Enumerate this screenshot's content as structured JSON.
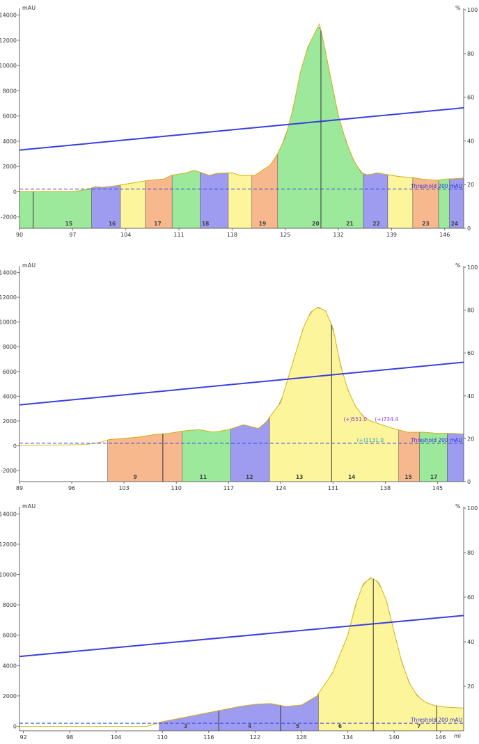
{
  "chart_data": [
    {
      "type": "area",
      "title": "",
      "y_unit_left": "mAU",
      "y_unit_right": "%",
      "xlim": [
        90,
        148.5
      ],
      "ylim": [
        -2900,
        14200
      ],
      "x_ticks": [
        90,
        97,
        104,
        111,
        118,
        125,
        132,
        139,
        146
      ],
      "y_ticks": [
        -2000,
        0,
        2000,
        4000,
        6000,
        8000,
        10000,
        12000,
        14000
      ],
      "y2_ticks": [
        0,
        20,
        40,
        60,
        80,
        100
      ],
      "x_unit": "",
      "threshold": {
        "value": 200,
        "label": "Threshold 200 mAU"
      },
      "gradient": {
        "x": [
          90,
          148.5
        ],
        "y": [
          3300,
          6650
        ]
      },
      "absorbance": {
        "x": [
          90,
          97,
          99,
          100,
          101,
          103,
          104,
          106,
          107,
          109,
          110,
          112,
          113,
          114,
          115,
          116,
          118,
          119,
          121,
          122,
          123,
          124,
          125,
          126,
          127,
          128,
          129,
          129.5,
          130,
          131,
          132,
          133,
          134,
          135,
          136,
          137,
          139,
          140,
          142,
          143,
          145,
          146,
          148,
          148.5
        ],
        "y": [
          0,
          0,
          200,
          400,
          350,
          500,
          600,
          800,
          900,
          1000,
          1300,
          1500,
          1700,
          1500,
          1300,
          1450,
          1500,
          1300,
          1300,
          1700,
          2100,
          3000,
          4300,
          6500,
          9500,
          11500,
          12700,
          13300,
          12000,
          9000,
          6000,
          4000,
          2500,
          1500,
          1300,
          1500,
          1300,
          1200,
          1100,
          1000,
          900,
          1000,
          1050,
          1100
        ]
      },
      "fractions": [
        {
          "x0": 90,
          "x1": 99.5,
          "color": "#9ce99c",
          "label": "15"
        },
        {
          "x0": 99.5,
          "x1": 103.3,
          "color": "#9e9cf0",
          "label": "16"
        },
        {
          "x0": 103.3,
          "x1": 106.6,
          "color": "#fdf59c",
          "label": ""
        },
        {
          "x0": 106.6,
          "x1": 110.1,
          "color": "#f8b88e",
          "label": "17"
        },
        {
          "x0": 110.1,
          "x1": 113.8,
          "color": "#9ce99c",
          "label": ""
        },
        {
          "x0": 113.8,
          "x1": 117.5,
          "color": "#9e9cf0",
          "label": "18"
        },
        {
          "x0": 117.5,
          "x1": 120.6,
          "color": "#fdf59c",
          "label": ""
        },
        {
          "x0": 120.6,
          "x1": 124,
          "color": "#f8b88e",
          "label": "19"
        },
        {
          "x0": 124,
          "x1": 142.6,
          "color": "#9ce99c",
          "label": "20"
        },
        {
          "x0": 124,
          "x1": 142.6,
          "color": "none",
          "label": ""
        }
      ],
      "fraction_labels": [
        {
          "x": 96.5,
          "text": "15"
        },
        {
          "x": 102.2,
          "text": "16"
        },
        {
          "x": 108.2,
          "text": "17"
        },
        {
          "x": 114.5,
          "text": "18"
        },
        {
          "x": 122,
          "text": "19"
        },
        {
          "x": 129,
          "text": "20"
        },
        {
          "x": 133.5,
          "text": "21"
        },
        {
          "x": 137,
          "text": "22"
        },
        {
          "x": 143.5,
          "text": "23"
        },
        {
          "x": 147.3,
          "text": "24"
        }
      ],
      "fractions_right": [
        {
          "x0": 124,
          "x1": 135.3,
          "color": "#9ce99c"
        },
        {
          "x0": 135.3,
          "x1": 138.5,
          "color": "#9e9cf0"
        },
        {
          "x0": 138.5,
          "x1": 141.8,
          "color": "#fdf59c"
        },
        {
          "x0": 141.8,
          "x1": 145.2,
          "color": "#f8b88e"
        },
        {
          "x0": 145.2,
          "x1": 146.6,
          "color": "#9ce99c"
        },
        {
          "x0": 146.6,
          "x1": 148.5,
          "color": "#9e9cf0"
        }
      ],
      "markers": [
        91.8,
        129.7
      ],
      "annotations": []
    },
    {
      "type": "area",
      "title": "",
      "y_unit_left": "mAU",
      "y_unit_right": "%",
      "xlim": [
        89,
        148.5
      ],
      "ylim": [
        -2900,
        14200
      ],
      "x_ticks": [
        89,
        96,
        103,
        110,
        117,
        124,
        131,
        138,
        145
      ],
      "y_ticks": [
        -2000,
        0,
        2000,
        4000,
        6000,
        8000,
        10000,
        12000,
        14000
      ],
      "y2_ticks": [
        0,
        20,
        40,
        60,
        80,
        100
      ],
      "x_unit": "",
      "threshold": {
        "value": 200,
        "label": "Threshold 200 mAU"
      },
      "gradient": {
        "x": [
          89,
          148.5
        ],
        "y": [
          3300,
          6750
        ]
      },
      "absorbance": {
        "x": [
          89,
          98,
          100,
          101,
          103,
          105,
          107,
          109,
          111,
          113,
          115,
          117,
          119,
          121,
          122,
          124,
          125,
          126,
          127,
          128,
          129,
          130,
          131,
          132,
          133,
          134,
          135,
          136,
          137,
          138,
          139,
          141,
          143,
          145,
          147,
          148.5
        ],
        "y": [
          0,
          100,
          300,
          500,
          600,
          700,
          900,
          1000,
          1200,
          1300,
          1100,
          1300,
          1700,
          1400,
          1900,
          3500,
          5500,
          7500,
          9500,
          10800,
          11200,
          10900,
          9500,
          6500,
          4500,
          3200,
          2400,
          2000,
          1800,
          1600,
          1400,
          1100,
          1100,
          1000,
          1000,
          950
        ]
      },
      "fractions": [
        {
          "x0": 100.8,
          "x1": 108.2,
          "color": "#f8b88e",
          "label": ""
        },
        {
          "x0": 108.2,
          "x1": 110.8,
          "color": "#f8b88e",
          "label": ""
        },
        {
          "x0": 110.8,
          "x1": 117.3,
          "color": "#9ce99c",
          "label": ""
        },
        {
          "x0": 117.3,
          "x1": 122.5,
          "color": "#9e9cf0",
          "label": ""
        },
        {
          "x0": 122.5,
          "x1": 139.8,
          "color": "#fdf59c",
          "label": ""
        },
        {
          "x0": 139.8,
          "x1": 142.6,
          "color": "#f8b88e",
          "label": ""
        },
        {
          "x0": 142.6,
          "x1": 146.3,
          "color": "#9ce99c",
          "label": ""
        },
        {
          "x0": 146.3,
          "x1": 148.5,
          "color": "#9e9cf0",
          "label": ""
        }
      ],
      "fraction_labels": [
        {
          "x": 104.5,
          "text": "9"
        },
        {
          "x": 113.6,
          "text": "11"
        },
        {
          "x": 119.8,
          "text": "12"
        },
        {
          "x": 126.5,
          "text": "13"
        },
        {
          "x": 133.5,
          "text": "14"
        },
        {
          "x": 141.1,
          "text": "15"
        },
        {
          "x": 144.5,
          "text": "17"
        }
      ],
      "markers": [
        108.2,
        130.8
      ],
      "annotations": [
        {
          "x": 132.4,
          "y": 2000,
          "text": "(+)551.0",
          "color": "#9b38c9"
        },
        {
          "x": 136.6,
          "y": 2000,
          "text": "(+)734.4",
          "color": "#9b38c9"
        },
        {
          "x": 134.2,
          "y": 300,
          "text": "(+)1131.0",
          "color": "#2aa7b0"
        }
      ]
    },
    {
      "type": "area",
      "title": "",
      "y_unit_left": "mAU",
      "y_unit_right": "%",
      "xlim": [
        91.5,
        149
      ],
      "ylim": [
        -300,
        14200
      ],
      "x_ticks": [
        92,
        98,
        104,
        110,
        116,
        122,
        128,
        134,
        140,
        146
      ],
      "y_ticks": [
        0,
        2000,
        4000,
        6000,
        8000,
        10000,
        12000,
        14000
      ],
      "y2_ticks": [
        20,
        40,
        60,
        80,
        100
      ],
      "x_unit": "ml",
      "threshold": {
        "value": 200,
        "label": "Threshold 200 mAU"
      },
      "gradient": {
        "x": [
          91.5,
          149
        ],
        "y": [
          4600,
          7300
        ]
      },
      "absorbance": {
        "x": [
          91.5,
          108,
          110,
          112,
          114,
          116,
          118,
          120,
          122,
          124,
          126,
          128,
          130,
          132,
          134,
          135,
          136,
          137,
          138,
          139,
          140,
          141,
          142,
          143,
          144,
          145,
          146,
          147,
          149
        ],
        "y": [
          0,
          0,
          300,
          500,
          700,
          900,
          1100,
          1300,
          1450,
          1500,
          1300,
          1400,
          2000,
          3500,
          6000,
          8000,
          9400,
          9800,
          9500,
          8300,
          6200,
          4200,
          2800,
          2000,
          1600,
          1400,
          1300,
          1250,
          1200
        ]
      },
      "fractions": [
        {
          "x0": 109.6,
          "x1": 117.3,
          "color": "#9e9cf0",
          "label": ""
        },
        {
          "x0": 117.3,
          "x1": 125.3,
          "color": "#9e9cf0",
          "label": ""
        },
        {
          "x0": 125.3,
          "x1": 130.2,
          "color": "#9e9cf0",
          "label": ""
        },
        {
          "x0": 130.2,
          "x1": 149,
          "color": "#fdf59c",
          "label": ""
        }
      ],
      "fraction_labels": [
        {
          "x": 113,
          "text": "3"
        },
        {
          "x": 121.3,
          "text": "4"
        },
        {
          "x": 127.5,
          "text": "5"
        },
        {
          "x": 133,
          "text": "6"
        },
        {
          "x": 143.2,
          "text": "7"
        }
      ],
      "markers": [
        117.3,
        125.3,
        137.3,
        145.5
      ],
      "annotations": []
    }
  ]
}
